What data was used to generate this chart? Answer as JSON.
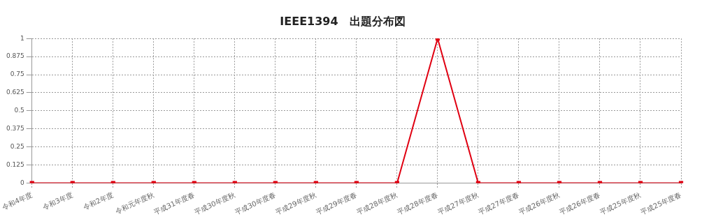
{
  "chart_data": {
    "type": "line",
    "title": "IEEE1394　出題分布図",
    "categories": [
      "令和4年度",
      "令和3年度",
      "令和2年度",
      "令和元年度秋",
      "平成31年度春",
      "平成30年度秋",
      "平成30年度春",
      "平成29年度秋",
      "平成29年度春",
      "平成28年度秋",
      "平成28年度春",
      "平成27年度秋",
      "平成27年度春",
      "平成26年度秋",
      "平成26年度春",
      "平成25年度秋",
      "平成25年度春"
    ],
    "series": [
      {
        "color": "#e00012",
        "values": [
          0,
          0,
          0,
          0,
          0,
          0,
          0,
          0,
          0,
          0,
          1,
          0,
          0,
          0,
          0,
          0,
          0
        ]
      }
    ],
    "ylim": [
      0,
      1
    ],
    "yticks": [
      0,
      0.125,
      0.25,
      0.375,
      0.5,
      0.625,
      0.75,
      0.875,
      1
    ],
    "grid": true,
    "legend": false,
    "marker": "square",
    "line_style": "solid"
  }
}
